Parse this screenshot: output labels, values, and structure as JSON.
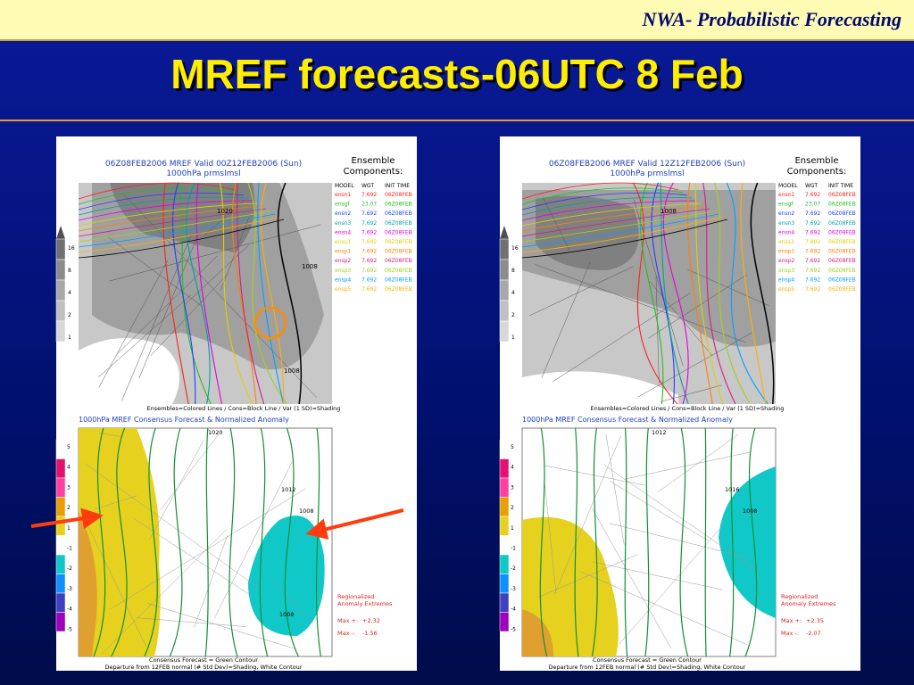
{
  "header": {
    "brand": "NWA-",
    "subject": "Probabilistic Forecasting"
  },
  "title": "MREF forecasts-06UTC 8 Feb",
  "panels": [
    {
      "map_title": [
        "06Z08FEB2006 MREF Valid 00Z12FEB2006 (Sun)",
        "1000hPa prmslmsl"
      ],
      "ensemble_heading": [
        "Ensemble",
        "Components:"
      ],
      "table_header": [
        "MODEL",
        "WGT",
        "INIT TIME"
      ],
      "components": [
        [
          "ensn1",
          "7.692",
          "06Z08FEB"
        ],
        [
          "ensgf",
          "23.07",
          "06Z08FEB"
        ],
        [
          "ensn2",
          "7.692",
          "06Z08FEB"
        ],
        [
          "ensn3",
          "7.692",
          "06Z08FEB"
        ],
        [
          "ensn4",
          "7.692",
          "06Z08FEB"
        ],
        [
          "enss3",
          "7.692",
          "06Z08FEB"
        ],
        [
          "ensp1",
          "7.692",
          "06Z08FEB"
        ],
        [
          "ensp2",
          "7.692",
          "06Z08FEB"
        ],
        [
          "ensp3",
          "7.692",
          "06Z08FEB"
        ],
        [
          "ensp4",
          "7.692",
          "06Z08FEB"
        ],
        [
          "ensp5",
          "7.692",
          "06Z08FEB"
        ]
      ],
      "upper_scale": [
        "16",
        "8",
        "4",
        "2",
        "1"
      ],
      "upper_contours": [
        "1020",
        "1008",
        "1008"
      ],
      "upper_caption": "Ensembles=Colored Lines / Cons=Block Line / Var (1 SD)=Shading",
      "lower_title": "1000hPa MREF Consensus Forecast & Normalized Anomaly",
      "lower_scale": [
        "5",
        "4",
        "3",
        "2",
        "1",
        "-1",
        "-2",
        "-3",
        "-4",
        "-5"
      ],
      "lower_contours": [
        "1020",
        "1012",
        "1008",
        "1008"
      ],
      "extremes_heading": [
        "Regionalized",
        "Anomaly Extremes"
      ],
      "extremes": [
        [
          "Max +:",
          "+2.32"
        ],
        [
          "Max -:",
          "-1.56"
        ]
      ],
      "lower_caption": [
        "Consensus Forecast = Green Contour",
        "Departure from 12FEB normal (# Std Dev)=Shading, White Contour"
      ]
    },
    {
      "map_title": [
        "06Z08FEB2006 MREF Valid 12Z12FEB2006 (Sun)",
        "1000hPa prmslmsl"
      ],
      "ensemble_heading": [
        "Ensemble",
        "Components:"
      ],
      "table_header": [
        "MODEL",
        "WGT",
        "INIT TIME"
      ],
      "components": [
        [
          "ensn1",
          "7.692",
          "06Z08FEB"
        ],
        [
          "ensgf",
          "23.07",
          "06Z08FEB"
        ],
        [
          "ensn2",
          "7.692",
          "06Z08FEB"
        ],
        [
          "ensn3",
          "7.692",
          "06Z08FEB"
        ],
        [
          "ensn4",
          "7.692",
          "06Z08FEB"
        ],
        [
          "enss3",
          "7.692",
          "06Z08FEB"
        ],
        [
          "ensp1",
          "7.692",
          "06Z08FEB"
        ],
        [
          "ensp2",
          "7.692",
          "06Z08FEB"
        ],
        [
          "ensp3",
          "7.692",
          "06Z08FEB"
        ],
        [
          "ensp4",
          "7.692",
          "06Z08FEB"
        ],
        [
          "ensp5",
          "7.692",
          "06Z08FEB"
        ]
      ],
      "upper_scale": [
        "16",
        "8",
        "4",
        "2",
        "1"
      ],
      "upper_contours": [
        "1008"
      ],
      "upper_caption": "Ensembles=Colored Lines / Cons=Block Line / Var (1 SD)=Shading",
      "lower_title": "1000hPa MREF Consensus Forecast & Normalized Anomaly",
      "lower_scale": [
        "5",
        "4",
        "3",
        "2",
        "1",
        "-1",
        "-2",
        "-3",
        "-4",
        "-5"
      ],
      "lower_contours": [
        "1012",
        "1016",
        "1008"
      ],
      "extremes_heading": [
        "Regionalized",
        "Anomaly Extremes"
      ],
      "extremes": [
        [
          "Max +:",
          "+2.35"
        ],
        [
          "Max -:",
          "-2.07"
        ]
      ],
      "lower_caption": [
        "Consensus Forecast = Green Contour",
        "Departure from 12FEB normal (# Std Dev)=Shading, White Contour"
      ]
    }
  ]
}
